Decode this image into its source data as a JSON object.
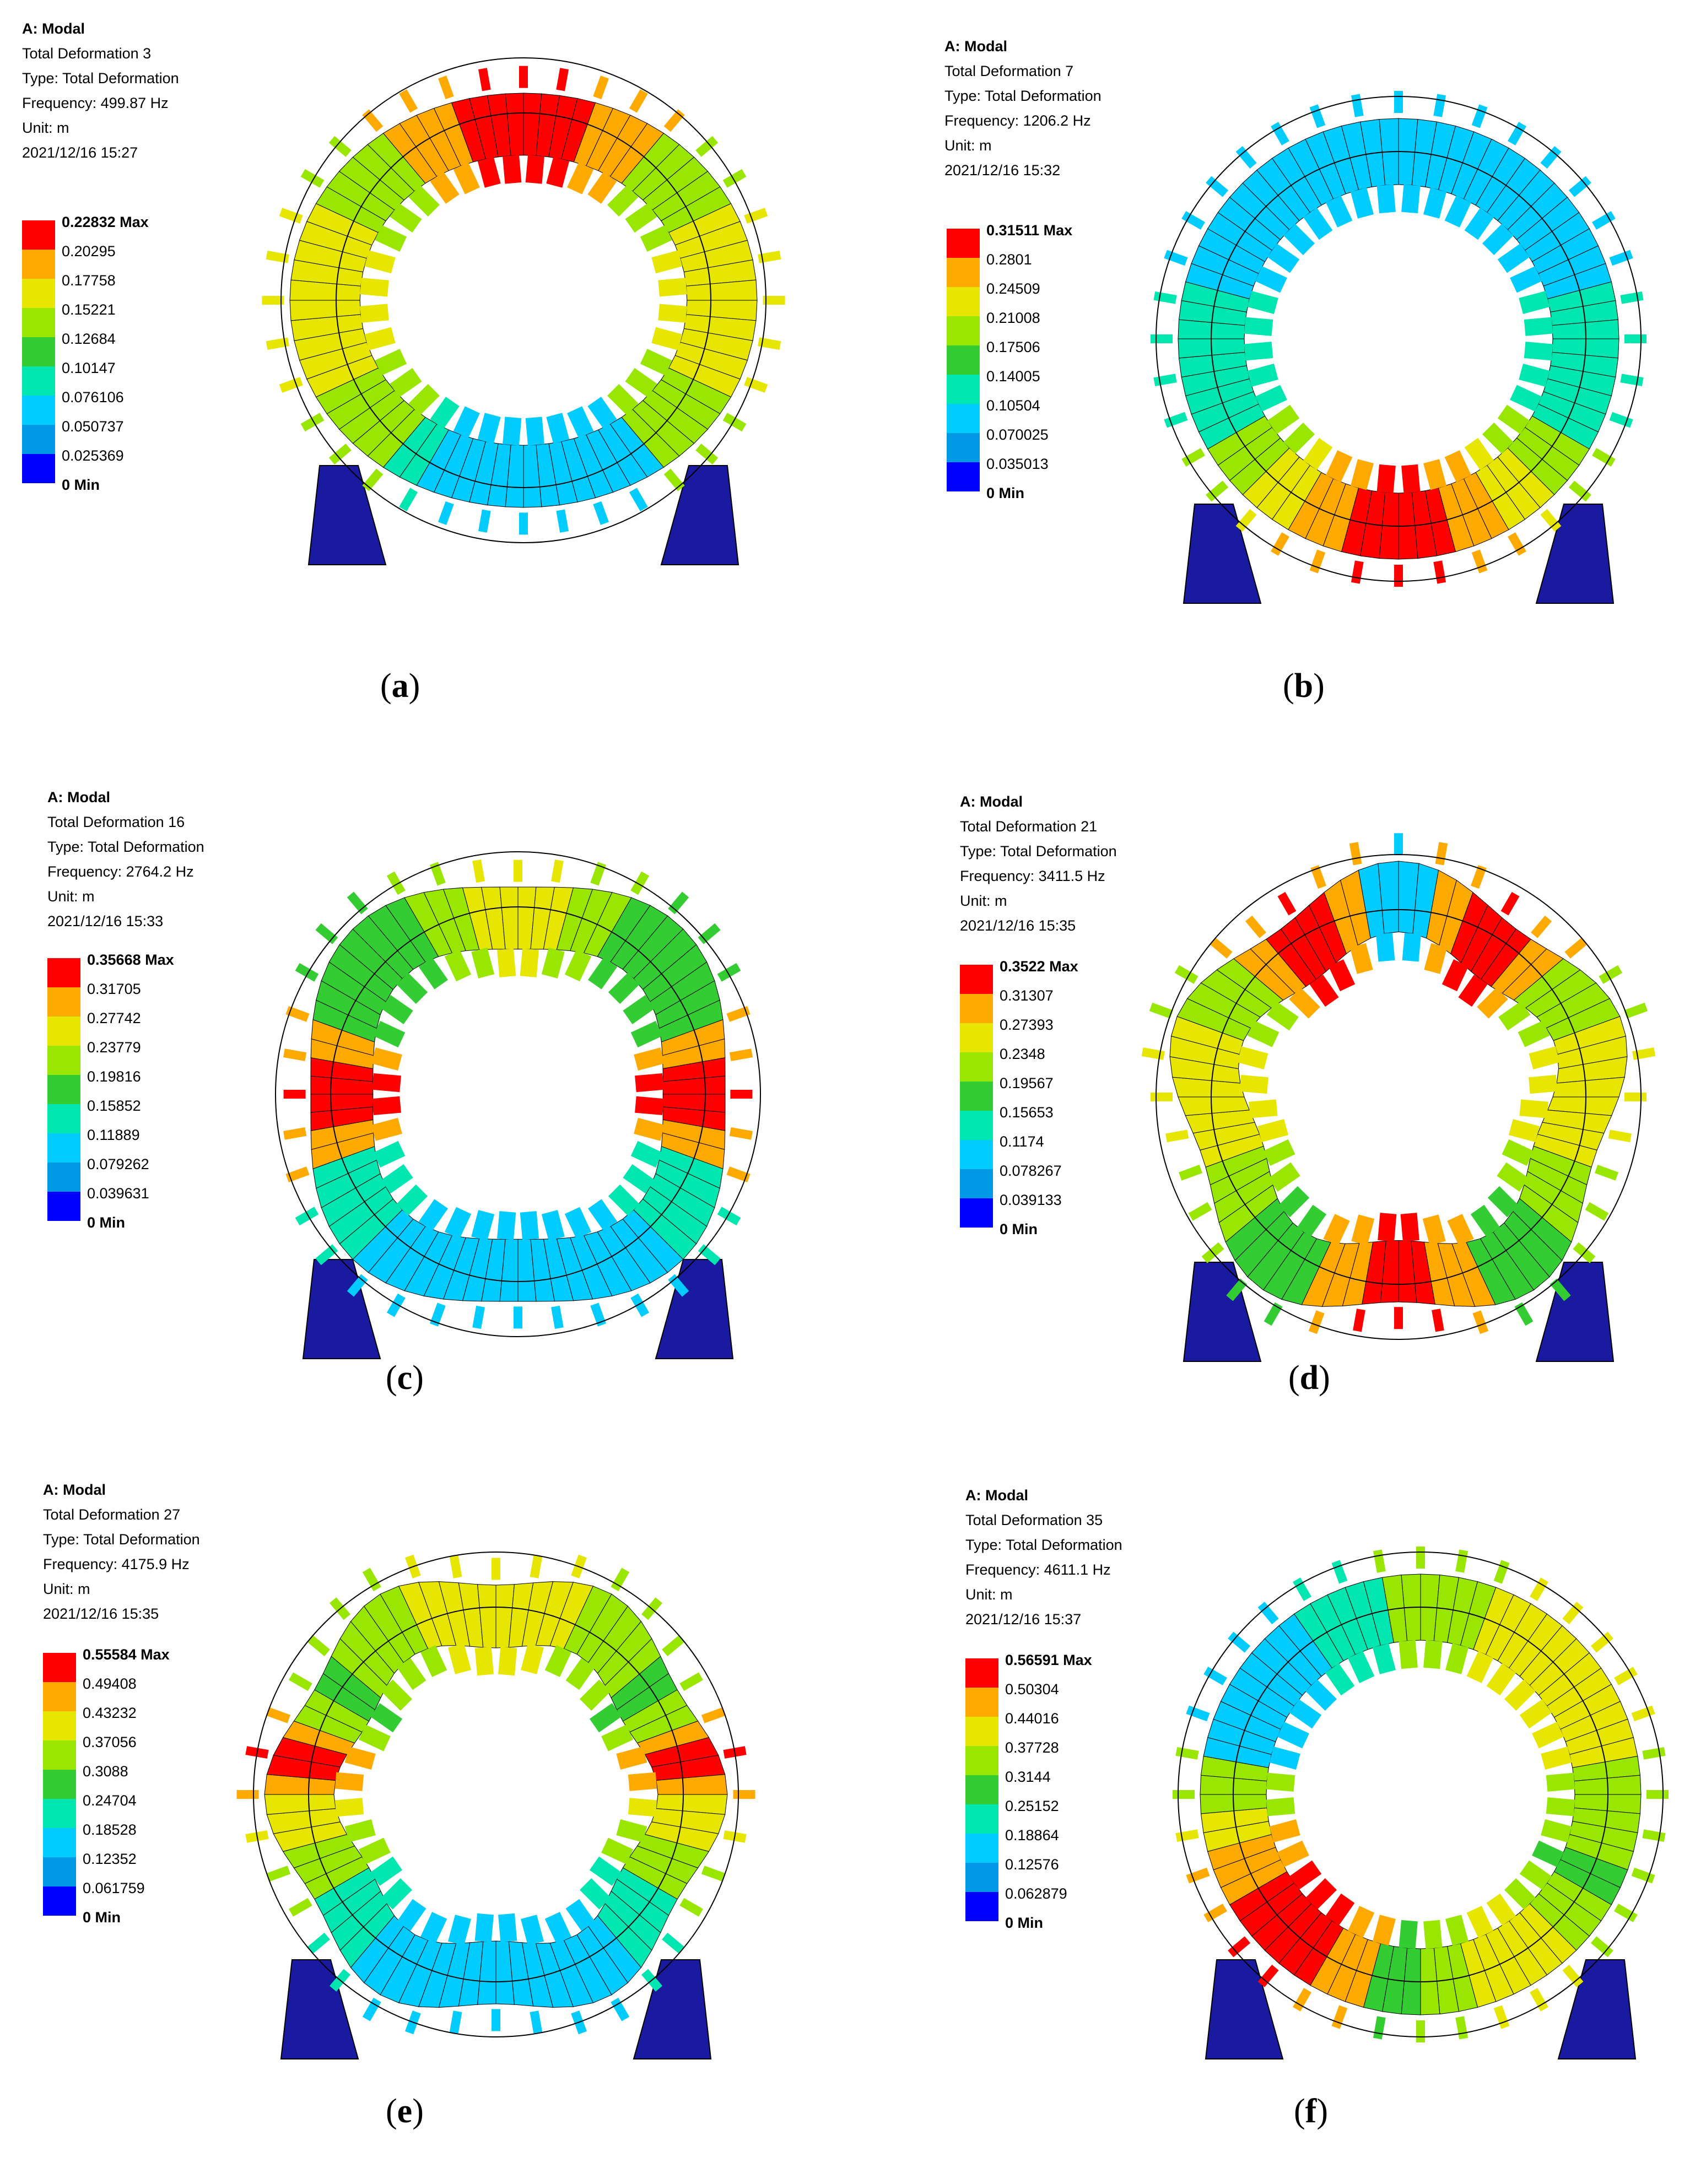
{
  "colors": [
    "#ff0000",
    "#ffaa00",
    "#e6e600",
    "#99e600",
    "#33cc33",
    "#00e6b0",
    "#00ccff",
    "#0099e6",
    "#0000ff"
  ],
  "panels": [
    {
      "title": "A: Modal",
      "lines": [
        "Total Deformation 3",
        "Type: Total Deformation",
        "Frequency: 499.87 Hz",
        "Unit: m",
        "2021/12/16 15:27"
      ],
      "legend": [
        "0.22832 Max",
        "0.20295",
        "0.17758",
        "0.15221",
        "0.12684",
        "0.10147",
        "0.076106",
        "0.050737",
        "0.025369"
      ],
      "min_label": "0 Min",
      "caption_open": "(",
      "caption_letter": "a",
      "caption_close": ")"
    },
    {
      "title": "A: Modal",
      "lines": [
        "Total Deformation 7",
        "Type: Total Deformation",
        "Frequency: 1206.2 Hz",
        "Unit: m",
        "2021/12/16 15:32"
      ],
      "legend": [
        "0.31511 Max",
        "0.2801",
        "0.24509",
        "0.21008",
        "0.17506",
        "0.14005",
        "0.10504",
        "0.070025",
        "0.035013"
      ],
      "min_label": "0 Min",
      "caption_open": "(",
      "caption_letter": "b",
      "caption_close": ")"
    },
    {
      "title": "A: Modal",
      "lines": [
        "Total Deformation 16",
        "Type: Total Deformation",
        "Frequency: 2764.2 Hz",
        "Unit: m",
        "2021/12/16 15:33"
      ],
      "legend": [
        "0.35668 Max",
        "0.31705",
        "0.27742",
        "0.23779",
        "0.19816",
        "0.15852",
        "0.11889",
        "0.079262",
        "0.039631"
      ],
      "min_label": "0 Min",
      "caption_open": "(",
      "caption_letter": "c",
      "caption_close": ")"
    },
    {
      "title": "A: Modal",
      "lines": [
        "Total Deformation 21",
        "Type: Total Deformation",
        "Frequency: 3411.5 Hz",
        "Unit: m",
        "2021/12/16 15:35"
      ],
      "legend": [
        "0.3522 Max",
        "0.31307",
        "0.27393",
        "0.2348",
        "0.19567",
        "0.15653",
        "0.1174",
        "0.078267",
        "0.039133"
      ],
      "min_label": "0 Min",
      "caption_open": "(",
      "caption_letter": "d",
      "caption_close": ")"
    },
    {
      "title": "A: Modal",
      "lines": [
        "Total Deformation 27",
        "Type: Total Deformation",
        "Frequency: 4175.9 Hz",
        "Unit: m",
        "2021/12/16 15:35"
      ],
      "legend": [
        "0.55584 Max",
        "0.49408",
        "0.43232",
        "0.37056",
        "0.3088",
        "0.24704",
        "0.18528",
        "0.12352",
        "0.061759"
      ],
      "min_label": "0 Min",
      "caption_open": "(",
      "caption_letter": "e",
      "caption_close": ")"
    },
    {
      "title": "A: Modal",
      "lines": [
        "Total Deformation 35",
        "Type: Total Deformation",
        "Frequency: 4611.1 Hz",
        "Unit: m",
        "2021/12/16 15:37"
      ],
      "legend": [
        "0.56591 Max",
        "0.50304",
        "0.44016",
        "0.37728",
        "0.3144",
        "0.25152",
        "0.18864",
        "0.12576",
        "0.062879"
      ],
      "min_label": "0 Min",
      "caption_open": "(",
      "caption_letter": "f",
      "caption_close": ")"
    }
  ]
}
